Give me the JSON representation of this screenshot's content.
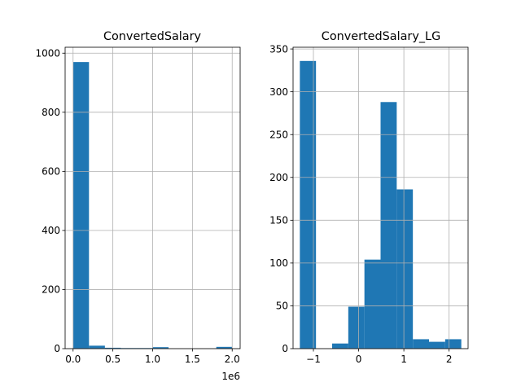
{
  "colors": {
    "bar": "#1f77b4",
    "grid": "#b0b0b0",
    "axes": "#000000",
    "background": "#ffffff"
  },
  "chart_data": [
    {
      "type": "bar",
      "title": "ConvertedSalary",
      "xlabel": "",
      "ylabel": "",
      "grid": true,
      "bin_edges": [
        0,
        200000,
        400000,
        600000,
        800000,
        1000000,
        1200000,
        1400000,
        1600000,
        1800000,
        2000000
      ],
      "values": [
        970,
        10,
        3,
        2,
        2,
        5,
        0,
        0,
        0,
        6
      ],
      "xlim": [
        -100000,
        2100000
      ],
      "ylim": [
        0,
        1020
      ],
      "xticks": [
        0,
        500000,
        1000000,
        1500000,
        2000000
      ],
      "xtick_labels": [
        "0.0",
        "0.5",
        "1.0",
        "1.5",
        "2.0"
      ],
      "yticks": [
        0,
        200,
        400,
        600,
        800,
        1000
      ],
      "ytick_labels": [
        "0",
        "200",
        "400",
        "600",
        "800",
        "1000"
      ],
      "x_offset_label": "1e6"
    },
    {
      "type": "bar",
      "title": "ConvertedSalary_LG",
      "xlabel": "",
      "ylabel": "",
      "grid": true,
      "bin_edges": [
        -1.3,
        -0.943,
        -0.586,
        -0.229,
        0.128,
        0.485,
        0.842,
        1.199,
        1.556,
        1.913,
        2.27
      ],
      "values": [
        336,
        0,
        6,
        49,
        104,
        288,
        186,
        11,
        8,
        11
      ],
      "xlim": [
        -1.45,
        2.42
      ],
      "ylim": [
        0,
        352
      ],
      "xticks": [
        -1,
        0,
        1,
        2
      ],
      "xtick_labels": [
        "−1",
        "0",
        "1",
        "2"
      ],
      "yticks": [
        0,
        50,
        100,
        150,
        200,
        250,
        300,
        350
      ],
      "ytick_labels": [
        "0",
        "50",
        "100",
        "150",
        "200",
        "250",
        "300",
        "350"
      ]
    }
  ]
}
